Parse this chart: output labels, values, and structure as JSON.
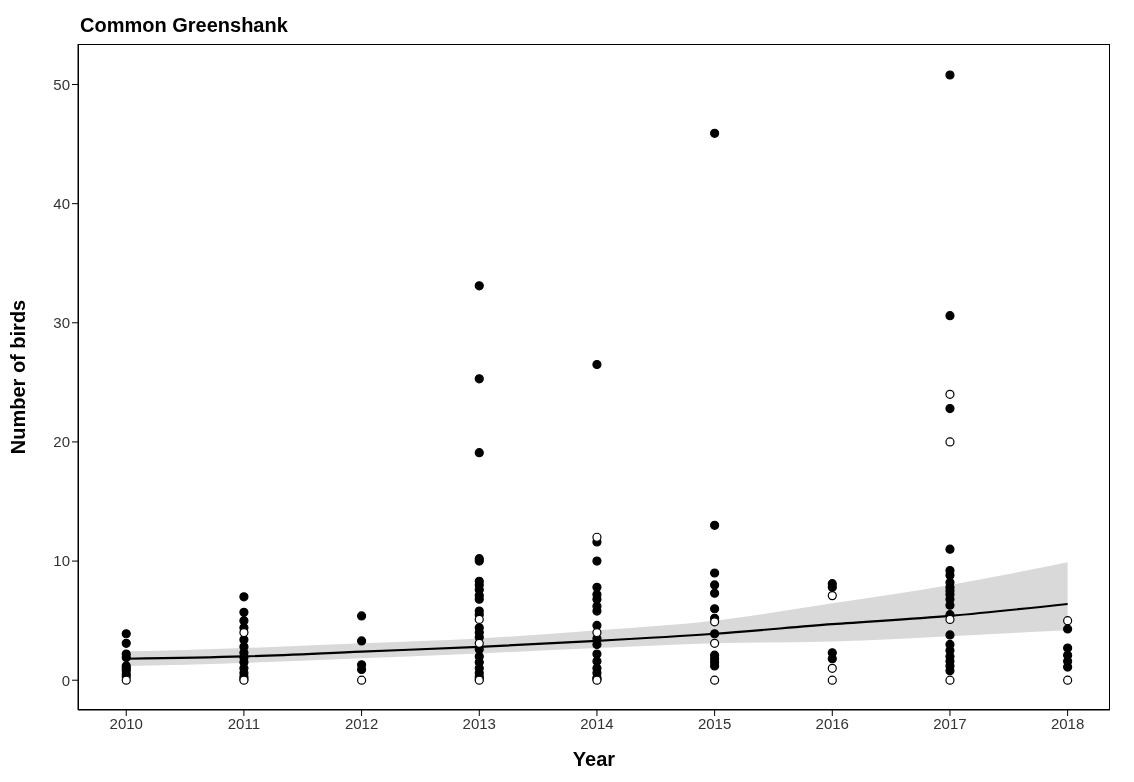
{
  "chart_data": {
    "type": "scatter",
    "title": "Common Greenshank",
    "xlabel": "Year",
    "ylabel": "Number of birds",
    "xlim": [
      2009.59,
      2018.36
    ],
    "xticks": [
      2010,
      2011,
      2012,
      2013,
      2014,
      2015,
      2016,
      2017,
      2018
    ],
    "ylim": [
      -2.5,
      53.4
    ],
    "yticks": [
      0,
      10,
      20,
      30,
      40,
      50
    ],
    "series": [
      {
        "marker": "circle",
        "color": "#000000",
        "x": [
          2010,
          2010,
          2010,
          2010,
          2010,
          2010,
          2010,
          2010,
          2010,
          2011,
          2011,
          2011,
          2011,
          2011,
          2011,
          2011,
          2011,
          2011,
          2011,
          2011,
          2011,
          2011,
          2012,
          2012,
          2012,
          2012,
          2013,
          2013,
          2013,
          2013,
          2013,
          2013,
          2013,
          2013,
          2013,
          2013,
          2013,
          2013,
          2013,
          2013,
          2013,
          2013,
          2013,
          2013,
          2013,
          2013,
          2013,
          2013,
          2014,
          2014,
          2014,
          2014,
          2014,
          2014,
          2014,
          2014,
          2014,
          2014,
          2014,
          2014,
          2014,
          2014,
          2014,
          2014,
          2014,
          2015,
          2015,
          2015,
          2015,
          2015,
          2015,
          2015,
          2015,
          2015,
          2015,
          2015,
          2015,
          2016,
          2016,
          2016,
          2016,
          2017,
          2017,
          2017,
          2017,
          2017,
          2017,
          2017,
          2017,
          2017,
          2017,
          2017,
          2017,
          2017,
          2017,
          2017,
          2017,
          2017,
          2017,
          2017,
          2017,
          2018,
          2018,
          2018,
          2018,
          2018
        ],
        "values": [
          3.9,
          3.1,
          2.2,
          1.9,
          1.2,
          1.0,
          0.8,
          0.5,
          0.3,
          7.0,
          5.7,
          5.0,
          4.4,
          3.4,
          2.8,
          2.3,
          1.9,
          1.5,
          1.0,
          0.6,
          0.3,
          0.1,
          5.4,
          3.3,
          1.3,
          0.9,
          33.1,
          25.3,
          19.1,
          10.2,
          10.0,
          8.3,
          8.0,
          7.6,
          7.1,
          6.8,
          5.8,
          5.5,
          4.4,
          4.0,
          3.6,
          2.6,
          2.0,
          1.5,
          1.0,
          0.6,
          0.3,
          0.1,
          26.5,
          11.6,
          10.0,
          7.8,
          7.2,
          6.8,
          6.2,
          5.8,
          4.6,
          3.5,
          3.0,
          2.2,
          1.6,
          1.0,
          0.6,
          0.2,
          0.1,
          45.9,
          13.0,
          9.0,
          8.0,
          7.3,
          6.0,
          5.2,
          3.9,
          2.1,
          1.8,
          1.5,
          1.2,
          8.1,
          7.8,
          2.3,
          1.8,
          50.8,
          30.6,
          22.8,
          11.0,
          9.2,
          8.8,
          8.2,
          7.8,
          7.5,
          7.2,
          6.8,
          6.3,
          5.5,
          3.8,
          3.0,
          2.5,
          2.0,
          1.6,
          1.2,
          0.8,
          4.3,
          2.7,
          2.1,
          1.6,
          1.1
        ]
      },
      {
        "marker": "circle",
        "color": "#ffffff",
        "x": [
          2010,
          2011,
          2011,
          2012,
          2013,
          2013,
          2013,
          2014,
          2014,
          2014,
          2015,
          2015,
          2015,
          2016,
          2016,
          2016,
          2017,
          2017,
          2017,
          2017,
          2018,
          2018
        ],
        "values": [
          0,
          4.0,
          0,
          0,
          5.1,
          3.1,
          0,
          12.0,
          4.0,
          0,
          4.9,
          3.1,
          0,
          7.1,
          1.0,
          0,
          24.0,
          20.0,
          5.1,
          0,
          5.0,
          0
        ]
      },
      {
        "type": "line",
        "color": "#000000",
        "x": [
          2010,
          2011,
          2012,
          2013,
          2014,
          2015,
          2016,
          2017,
          2018
        ],
        "values": [
          1.8,
          2.0,
          2.4,
          2.8,
          3.3,
          3.9,
          4.7,
          5.4,
          6.4
        ],
        "lower": [
          1.2,
          1.45,
          1.85,
          2.25,
          2.7,
          3.1,
          3.25,
          3.7,
          4.2
        ],
        "upper": [
          2.4,
          2.7,
          3.1,
          3.5,
          4.2,
          5.0,
          6.45,
          8.0,
          9.9
        ]
      }
    ]
  }
}
